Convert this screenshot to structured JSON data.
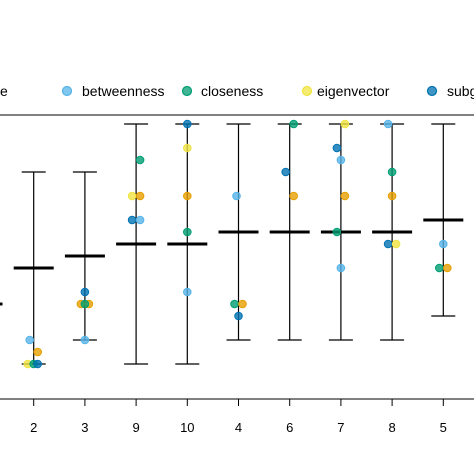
{
  "chart_data": {
    "type": "scatter",
    "title": "",
    "xlabel": "",
    "ylabel": "",
    "legend": {
      "placement": "top",
      "entries": [
        {
          "label": "e",
          "color": "#000000",
          "kind": "cut"
        },
        {
          "label": "betweenness",
          "color": "#56b4e9",
          "kind": "point"
        },
        {
          "label": "closeness",
          "color": "#009e73",
          "kind": "point"
        },
        {
          "label": "eigenvector",
          "color": "#f0e442",
          "kind": "point"
        },
        {
          "label": "subg",
          "color": "#0072b2",
          "kind": "point"
        }
      ]
    },
    "colors": {
      "degree": "#e69f00",
      "betweenness": "#56b4e9",
      "closeness": "#009e73",
      "eigenvector": "#f0e442",
      "subgraph": "#0072b2"
    },
    "ylim": [
      0,
      24
    ],
    "grid": false,
    "categories": [
      "",
      "2",
      "3",
      "9",
      "10",
      "4",
      "6",
      "7",
      "8",
      "5",
      ""
    ],
    "summary": [
      {
        "category": "",
        "mean": 8,
        "low": null,
        "high": null
      },
      {
        "category": "2",
        "mean": 11,
        "low": 3,
        "high": 19
      },
      {
        "category": "3",
        "mean": 12,
        "low": 5,
        "high": 19
      },
      {
        "category": "9",
        "mean": 13,
        "low": 3,
        "high": 23
      },
      {
        "category": "10",
        "mean": 13,
        "low": 3,
        "high": 23
      },
      {
        "category": "4",
        "mean": 14,
        "low": 5,
        "high": 23
      },
      {
        "category": "6",
        "mean": 14,
        "low": 5,
        "high": 23
      },
      {
        "category": "7",
        "mean": 14,
        "low": 5,
        "high": 23
      },
      {
        "category": "8",
        "mean": 14,
        "low": 5,
        "high": 23
      },
      {
        "category": "5",
        "mean": 15,
        "low": 7,
        "high": 23
      },
      {
        "category": "",
        "mean": 15,
        "low": null,
        "high": null
      }
    ],
    "points": [
      {
        "category": "2",
        "dx": -4,
        "y": 5,
        "metric": "betweenness"
      },
      {
        "category": "2",
        "dx": 4,
        "y": 4,
        "metric": "degree"
      },
      {
        "category": "2",
        "dx": -6,
        "y": 3,
        "metric": "eigenvector"
      },
      {
        "category": "2",
        "dx": 0,
        "y": 3,
        "metric": "closeness"
      },
      {
        "category": "2",
        "dx": 4,
        "y": 3,
        "metric": "subgraph"
      },
      {
        "category": "3",
        "dx": 0,
        "y": 9,
        "metric": "subgraph"
      },
      {
        "category": "3",
        "dx": -4,
        "y": 8,
        "metric": "degree"
      },
      {
        "category": "3",
        "dx": 4,
        "y": 8,
        "metric": "degree"
      },
      {
        "category": "3",
        "dx": 0,
        "y": 8,
        "metric": "closeness"
      },
      {
        "category": "3",
        "dx": 0,
        "y": 5,
        "metric": "betweenness"
      },
      {
        "category": "9",
        "dx": 4,
        "y": 20,
        "metric": "closeness"
      },
      {
        "category": "9",
        "dx": -4,
        "y": 17,
        "metric": "eigenvector"
      },
      {
        "category": "9",
        "dx": 4,
        "y": 17,
        "metric": "degree"
      },
      {
        "category": "9",
        "dx": -4,
        "y": 15,
        "metric": "subgraph"
      },
      {
        "category": "9",
        "dx": 4,
        "y": 15,
        "metric": "betweenness"
      },
      {
        "category": "10",
        "dx": 0,
        "y": 23,
        "metric": "subgraph"
      },
      {
        "category": "10",
        "dx": 0,
        "y": 21,
        "metric": "eigenvector"
      },
      {
        "category": "10",
        "dx": 0,
        "y": 17,
        "metric": "degree"
      },
      {
        "category": "10",
        "dx": 0,
        "y": 14,
        "metric": "closeness"
      },
      {
        "category": "10",
        "dx": 0,
        "y": 9,
        "metric": "betweenness"
      },
      {
        "category": "4",
        "dx": -2,
        "y": 17,
        "metric": "betweenness"
      },
      {
        "category": "4",
        "dx": -4,
        "y": 8,
        "metric": "closeness"
      },
      {
        "category": "4",
        "dx": 4,
        "y": 8,
        "metric": "degree"
      },
      {
        "category": "4",
        "dx": 0,
        "y": 7,
        "metric": "subgraph"
      },
      {
        "category": "6",
        "dx": 4,
        "y": 23,
        "metric": "closeness"
      },
      {
        "category": "6",
        "dx": -4,
        "y": 19,
        "metric": "subgraph"
      },
      {
        "category": "6",
        "dx": 4,
        "y": 17,
        "metric": "degree"
      },
      {
        "category": "7",
        "dx": 4,
        "y": 23,
        "metric": "eigenvector"
      },
      {
        "category": "7",
        "dx": -4,
        "y": 21,
        "metric": "subgraph"
      },
      {
        "category": "7",
        "dx": 0,
        "y": 20,
        "metric": "betweenness"
      },
      {
        "category": "7",
        "dx": 4,
        "y": 17,
        "metric": "degree"
      },
      {
        "category": "7",
        "dx": -4,
        "y": 14,
        "metric": "closeness"
      },
      {
        "category": "7",
        "dx": 0,
        "y": 11,
        "metric": "betweenness"
      },
      {
        "category": "8",
        "dx": -4,
        "y": 23,
        "metric": "betweenness"
      },
      {
        "category": "8",
        "dx": 0,
        "y": 19,
        "metric": "closeness"
      },
      {
        "category": "8",
        "dx": 0,
        "y": 17,
        "metric": "degree"
      },
      {
        "category": "8",
        "dx": -4,
        "y": 13,
        "metric": "subgraph"
      },
      {
        "category": "8",
        "dx": 4,
        "y": 13,
        "metric": "eigenvector"
      },
      {
        "category": "5",
        "dx": 0,
        "y": 13,
        "metric": "betweenness"
      },
      {
        "category": "5",
        "dx": -4,
        "y": 11,
        "metric": "closeness"
      },
      {
        "category": "5",
        "dx": 4,
        "y": 11,
        "metric": "degree"
      }
    ]
  }
}
